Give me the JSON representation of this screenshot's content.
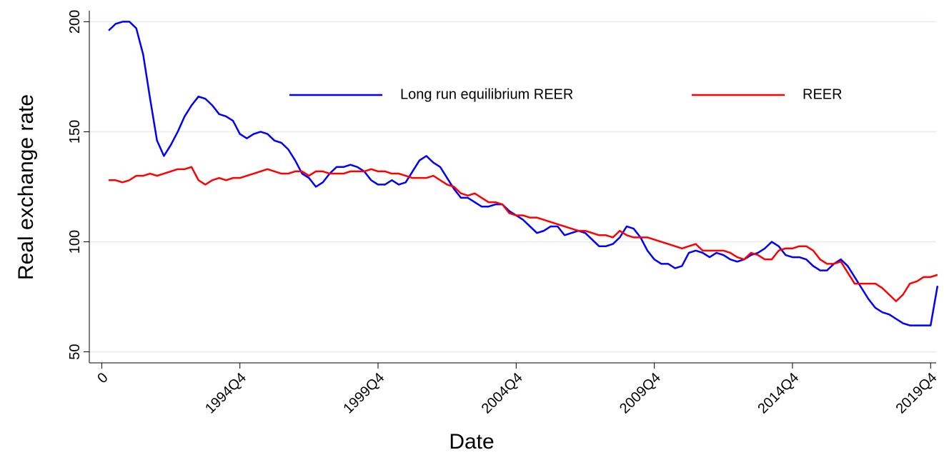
{
  "chart_data": {
    "type": "line",
    "x_label": "Date",
    "y_label": "Real exchange rate",
    "x": [
      1,
      2,
      3,
      4,
      5,
      6,
      7,
      8,
      9,
      10,
      11,
      12,
      13,
      14,
      15,
      16,
      17,
      18,
      19,
      20,
      21,
      22,
      23,
      24,
      25,
      26,
      27,
      28,
      29,
      30,
      31,
      32,
      33,
      34,
      35,
      36,
      37,
      38,
      39,
      40,
      41,
      42,
      43,
      44,
      45,
      46,
      47,
      48,
      49,
      50,
      51,
      52,
      53,
      54,
      55,
      56,
      57,
      58,
      59,
      60,
      61,
      62,
      63,
      64,
      65,
      66,
      67,
      68,
      69,
      70,
      71,
      72,
      73,
      74,
      75,
      76,
      77,
      78,
      79,
      80,
      81,
      82,
      83,
      84,
      85,
      86,
      87,
      88,
      89,
      90,
      91,
      92,
      93,
      94,
      95,
      96,
      97,
      98,
      99,
      100,
      101,
      102,
      103,
      104,
      105,
      106,
      107,
      108,
      109,
      110,
      111,
      112,
      113,
      114,
      115,
      116,
      117,
      118,
      119,
      120,
      121
    ],
    "series": [
      {
        "name": "Long run equilibrium REER",
        "color": "#0000ff",
        "values": [
          196,
          199,
          200,
          200,
          197,
          185,
          165,
          146,
          139,
          144,
          150,
          157,
          162,
          166,
          165,
          162,
          158,
          157,
          155,
          149,
          147,
          149,
          150,
          149,
          146,
          145,
          142,
          137,
          131,
          129,
          125,
          127,
          131,
          134,
          134,
          135,
          134,
          132,
          128,
          126,
          126,
          128,
          126,
          127,
          132,
          137,
          139,
          136,
          134,
          129,
          124,
          120,
          120,
          118,
          116,
          116,
          117,
          117,
          114,
          112,
          110,
          107,
          104,
          105,
          107,
          107,
          103,
          104,
          105,
          104,
          101,
          98,
          98,
          99,
          102,
          107,
          106,
          102,
          96,
          92,
          90,
          90,
          88,
          89,
          95,
          96,
          95,
          93,
          95,
          94,
          92,
          91,
          92,
          94,
          95,
          97,
          100,
          98,
          94,
          93,
          93,
          92,
          89,
          87,
          87,
          90,
          92,
          89,
          84,
          79,
          74,
          70,
          68,
          67,
          65,
          63,
          62,
          62,
          62,
          62,
          80
        ]
      },
      {
        "name": "REER",
        "color": "#ff0000",
        "values": [
          128,
          128,
          127,
          128,
          130,
          130,
          131,
          130,
          131,
          132,
          133,
          133,
          134,
          128,
          126,
          128,
          129,
          128,
          129,
          129,
          130,
          131,
          132,
          133,
          132,
          131,
          131,
          132,
          132,
          130,
          132,
          132,
          131,
          131,
          131,
          132,
          132,
          132,
          133,
          132,
          132,
          131,
          131,
          130,
          129,
          129,
          129,
          130,
          128,
          126,
          125,
          122,
          121,
          122,
          120,
          118,
          118,
          117,
          113,
          112,
          112,
          111,
          111,
          110,
          109,
          108,
          107,
          106,
          105,
          105,
          104,
          103,
          103,
          102,
          105,
          103,
          102,
          102,
          102,
          101,
          100,
          99,
          98,
          97,
          98,
          99,
          96,
          96,
          96,
          96,
          95,
          93,
          92,
          95,
          94,
          92,
          92,
          96,
          97,
          97,
          98,
          98,
          96,
          92,
          90,
          90,
          91,
          86,
          81,
          81,
          81,
          81,
          79,
          76,
          73,
          76,
          81,
          82,
          84,
          84,
          85
        ]
      }
    ],
    "xlim": [
      -1.8,
      120.8
    ],
    "ylim": [
      45,
      205
    ],
    "xticks": [
      0,
      {
        "value": 20,
        "label": "1994Q4"
      },
      {
        "value": 40,
        "label": "1999Q4"
      },
      {
        "value": 60,
        "label": "2004Q4"
      },
      {
        "value": 80,
        "label": "2009Q4"
      },
      {
        "value": 100,
        "label": "2014Q4"
      },
      {
        "value": 120,
        "label": "2019Q4"
      }
    ],
    "yticks": [
      50,
      100,
      150,
      200
    ],
    "grid": true
  }
}
